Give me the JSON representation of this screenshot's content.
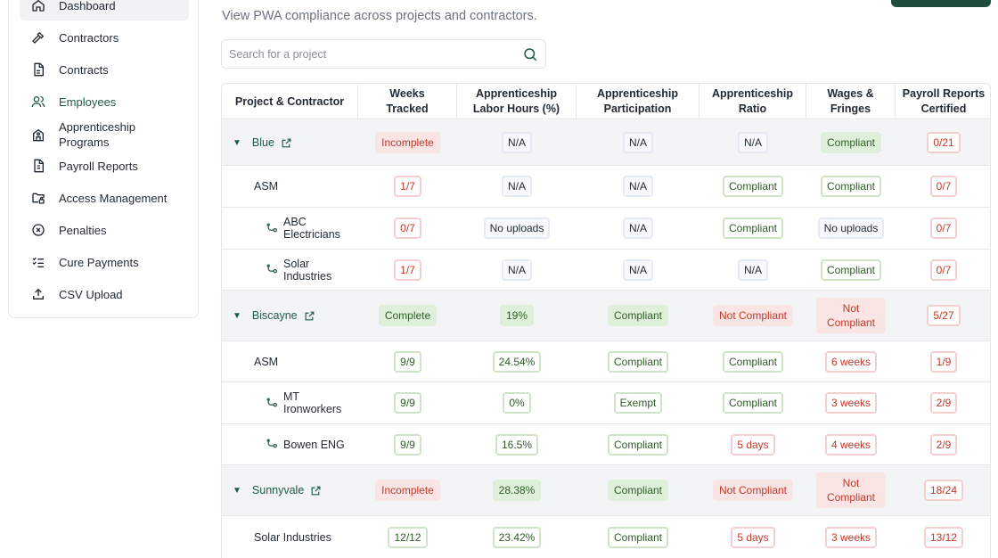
{
  "sidebar": {
    "items": [
      {
        "label": "Dashboard",
        "icon": "home-icon"
      },
      {
        "label": "Contractors",
        "icon": "hammer-icon"
      },
      {
        "label": "Contracts",
        "icon": "document-icon"
      },
      {
        "label": "Employees",
        "icon": "users-icon"
      },
      {
        "label": "Apprenticeship Programs",
        "icon": "school-icon"
      },
      {
        "label": "Payroll Reports",
        "icon": "report-icon"
      },
      {
        "label": "Access Management",
        "icon": "folder-lock-icon"
      },
      {
        "label": "Penalties",
        "icon": "circle-x-icon"
      },
      {
        "label": "Cure Payments",
        "icon": "checklist-icon"
      },
      {
        "label": "CSV Upload",
        "icon": "upload-icon"
      }
    ]
  },
  "header": {
    "subtitle": "View PWA compliance across projects and contractors."
  },
  "search": {
    "placeholder": "Search for a project",
    "value": ""
  },
  "table": {
    "columns": [
      "Project & Contractor",
      "Weeks Tracked",
      "Apprenticeship Labor Hours (%)",
      "Apprenticeship Participation",
      "Apprenticeship Ratio",
      "Wages & Fringes",
      "Payroll Reports Certified"
    ],
    "rows": [
      {
        "type": "group",
        "name": "Blue",
        "cells": [
          [
            "Incomplete",
            "red"
          ],
          [
            "N/A",
            "blue"
          ],
          [
            "N/A",
            "blue"
          ],
          [
            "N/A",
            "blue"
          ],
          [
            "Compliant",
            "green"
          ],
          [
            "0/21",
            "redo"
          ]
        ]
      },
      {
        "type": "contractor",
        "name": "ASM",
        "cells": [
          [
            "1/7",
            "redo"
          ],
          [
            "N/A",
            "blue"
          ],
          [
            "N/A",
            "blue"
          ],
          [
            "Compliant",
            "greeno"
          ],
          [
            "Compliant",
            "greeno"
          ],
          [
            "0/7",
            "redo"
          ]
        ]
      },
      {
        "type": "sub",
        "name": "ABC Electricians",
        "cells": [
          [
            "0/7",
            "redo"
          ],
          [
            "No uploads",
            "blue"
          ],
          [
            "N/A",
            "blue"
          ],
          [
            "Compliant",
            "greeno"
          ],
          [
            "No uploads",
            "blue"
          ],
          [
            "0/7",
            "redo"
          ]
        ]
      },
      {
        "type": "sub",
        "name": "Solar Industries",
        "cells": [
          [
            "1/7",
            "redo"
          ],
          [
            "N/A",
            "blue"
          ],
          [
            "N/A",
            "blue"
          ],
          [
            "N/A",
            "blue"
          ],
          [
            "Compliant",
            "greeno"
          ],
          [
            "0/7",
            "redo"
          ]
        ]
      },
      {
        "type": "group",
        "name": "Biscayne",
        "cells": [
          [
            "Complete",
            "green"
          ],
          [
            "19%",
            "green"
          ],
          [
            "Compliant",
            "green"
          ],
          [
            "Not Compliant",
            "red"
          ],
          [
            "Not Compliant",
            "red"
          ],
          [
            "5/27",
            "redo"
          ]
        ]
      },
      {
        "type": "contractor",
        "name": "ASM",
        "cells": [
          [
            "9/9",
            "greeno"
          ],
          [
            "24.54%",
            "greeno"
          ],
          [
            "Compliant",
            "greeno"
          ],
          [
            "Compliant",
            "greeno"
          ],
          [
            "6 weeks",
            "redo"
          ],
          [
            "1/9",
            "redo"
          ]
        ]
      },
      {
        "type": "sub",
        "name": "MT Ironworkers",
        "cells": [
          [
            "9/9",
            "greeno"
          ],
          [
            "0%",
            "greeno"
          ],
          [
            "Exempt",
            "greeno"
          ],
          [
            "Compliant",
            "greeno"
          ],
          [
            "3 weeks",
            "redo"
          ],
          [
            "2/9",
            "redo"
          ]
        ]
      },
      {
        "type": "sub",
        "name": "Bowen ENG",
        "cells": [
          [
            "9/9",
            "greeno"
          ],
          [
            "16.5%",
            "greeno"
          ],
          [
            "Compliant",
            "greeno"
          ],
          [
            "5 days",
            "redo"
          ],
          [
            "4 weeks",
            "redo"
          ],
          [
            "2/9",
            "redo"
          ]
        ]
      },
      {
        "type": "group",
        "name": "Sunnyvale",
        "cells": [
          [
            "Incomplete",
            "red"
          ],
          [
            "28.38%",
            "green"
          ],
          [
            "Compliant",
            "green"
          ],
          [
            "Not Compliant",
            "red"
          ],
          [
            "Not Compliant",
            "red"
          ],
          [
            "18/24",
            "redo"
          ]
        ]
      },
      {
        "type": "contractor",
        "name": "Solar Industries",
        "cells": [
          [
            "12/12",
            "greeno"
          ],
          [
            "23.42%",
            "greeno"
          ],
          [
            "Compliant",
            "greeno"
          ],
          [
            "5 days",
            "redo"
          ],
          [
            "3 weeks",
            "redo"
          ],
          [
            "13/12",
            "redo"
          ]
        ]
      }
    ]
  },
  "colors": {
    "accent": "#1e5b46",
    "red_text": "#c0392b",
    "green_text": "#2f5c27"
  }
}
